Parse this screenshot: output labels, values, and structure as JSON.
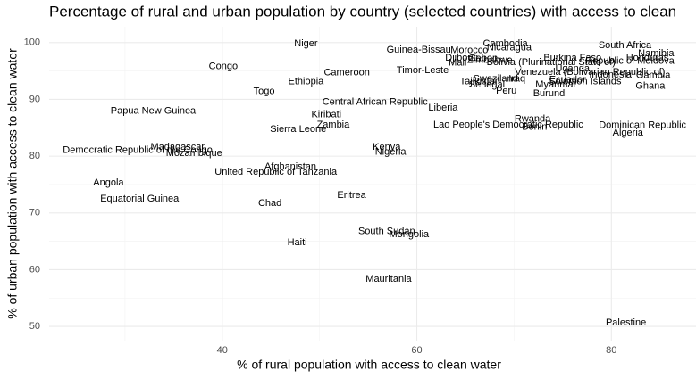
{
  "chart_data": {
    "type": "text-scatter",
    "title": "Percentage of rural and urban population by country (selected countries) with access to clean",
    "x_label": "% of rural population with access to clean water",
    "y_label": "% of urban population with access to clean water",
    "labels": [
      "Niger",
      "Cambodia",
      "South Africa",
      "Guinea-Bissau",
      "Morocco",
      "Nicaragua",
      "Namibia",
      "Djibouti",
      "Gabon",
      "Zimbabwe",
      "Mali",
      "Bolivia (Plurinational State of)",
      "Burkina Faso",
      "Honduras",
      "Republic of Moldova",
      "Congo",
      "Timor-Leste",
      "Venezuela (Bolivarian Republic of)",
      "Uganda",
      "Cameroon",
      "Ethiopia",
      "Tajikistan",
      "Swaziland",
      "Iraq",
      "Senegal",
      "Ecuador",
      "Indonesia",
      "Gambia",
      "Solomon Islands",
      "Myanmar",
      "Ghana",
      "Peru",
      "Burundi",
      "Togo",
      "Central African Republic",
      "Papua New Guinea",
      "Liberia",
      "Kiribati",
      "Zambia",
      "Rwanda",
      "Lao People's Democratic Republic",
      "Benin",
      "Dominican Republic",
      "Algeria",
      "Sierra Leone",
      "Madagascar",
      "Democratic Republic of the Congo",
      "Mozambique",
      "Kenya",
      "Nigeria",
      "Afghanistan",
      "United Republic of Tanzania",
      "Angola",
      "Equatorial Guinea",
      "Eritrea",
      "Chad",
      "South Sudan",
      "Mongolia",
      "Haiti",
      "Mauritania",
      "Palestine"
    ],
    "x": [
      48.6,
      69.1,
      81.4,
      60.2,
      65.4,
      69.5,
      84.6,
      64.6,
      66.8,
      67.5,
      64.2,
      73.8,
      76.0,
      83.7,
      81.9,
      40.1,
      60.6,
      77.8,
      76.0,
      52.8,
      48.6,
      66.5,
      68.1,
      70.3,
      67.2,
      75.5,
      79.9,
      84.3,
      77.3,
      74.3,
      84.0,
      69.2,
      73.7,
      44.3,
      55.7,
      32.9,
      62.7,
      50.7,
      51.4,
      71.9,
      69.4,
      72.1,
      83.2,
      81.7,
      47.8,
      35.4,
      31.3,
      37.1,
      56.9,
      57.3,
      47.0,
      45.5,
      28.3,
      31.5,
      53.3,
      44.9,
      56.9,
      59.2,
      47.7,
      57.1,
      81.5
    ],
    "y": [
      99.8,
      99.8,
      99.5,
      98.7,
      98.6,
      99.1,
      98.1,
      97.3,
      97.2,
      96.9,
      96.4,
      96.5,
      97.3,
      97.3,
      96.7,
      95.8,
      95.1,
      94.8,
      95.4,
      94.7,
      93.1,
      93.1,
      93.6,
      93.6,
      92.6,
      93.4,
      94.3,
      94.2,
      93.1,
      92.6,
      92.3,
      91.5,
      91.0,
      91.4,
      89.5,
      87.9,
      88.5,
      87.3,
      85.5,
      86.5,
      85.5,
      85.1,
      85.4,
      84.1,
      84.7,
      81.6,
      81.0,
      80.5,
      81.6,
      80.7,
      78.1,
      77.2,
      75.3,
      72.5,
      73.1,
      71.7,
      66.7,
      66.2,
      64.8,
      58.3,
      50.6
    ],
    "xlim": [
      22.2,
      88.7
    ],
    "ylim": [
      47.5,
      102.8
    ],
    "xticks": [
      40,
      60,
      80
    ],
    "yticks": [
      50,
      60,
      70,
      80,
      90,
      100
    ],
    "grid": true,
    "minor_grid": true
  }
}
